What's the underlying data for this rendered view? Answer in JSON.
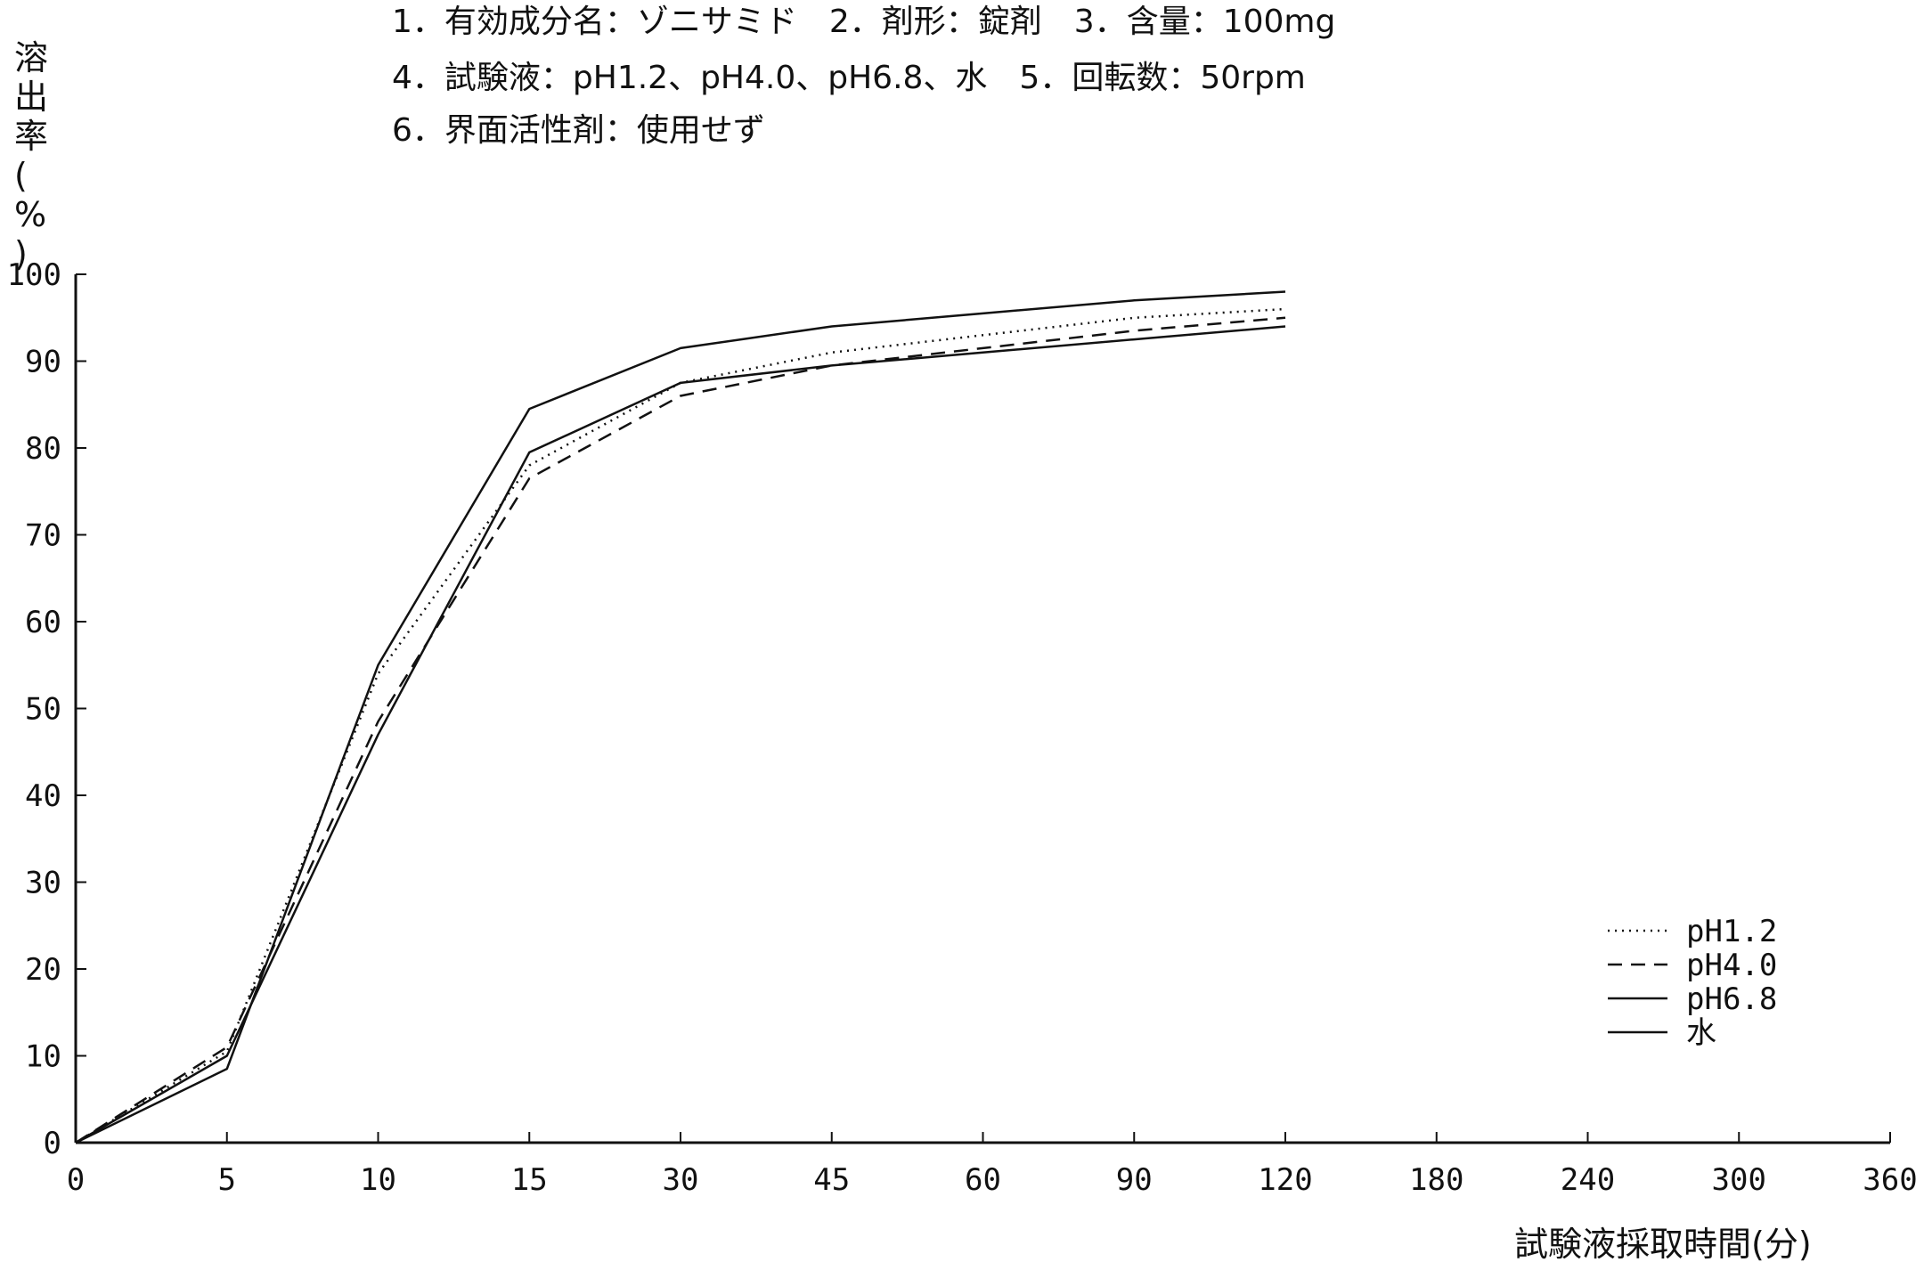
{
  "header": {
    "line1": "1．有効成分名：ゾニサミド　2．剤形：錠剤　3．含量：100mg",
    "line2": "4．試験液：pH1.2、pH4.0、pH6.8、水　5．回転数：50rpm",
    "line3": "6．界面活性剤：使用せず"
  },
  "chart_data": {
    "type": "line",
    "ylabel": "溶出率(%)",
    "xlabel": "試験液採取時間(分)",
    "x": [
      "0",
      "5",
      "10",
      "15",
      "30",
      "45",
      "60",
      "90",
      "120",
      "180",
      "240",
      "300",
      "360"
    ],
    "yticks": [
      "0",
      "10",
      "20",
      "30",
      "40",
      "50",
      "60",
      "70",
      "80",
      "90",
      "100"
    ],
    "ylim": [
      0,
      100
    ],
    "grid": false,
    "legend_position": "bottom-right",
    "series": [
      {
        "name": "pH1.2",
        "style": "dotted",
        "x": [
          "0",
          "5",
          "10",
          "15",
          "30",
          "45",
          "60",
          "90",
          "120"
        ],
        "values": [
          0,
          10.5,
          54,
          78,
          87.5,
          91,
          93,
          95,
          96
        ]
      },
      {
        "name": "pH4.0",
        "style": "dashed",
        "x": [
          "0",
          "5",
          "10",
          "15",
          "30",
          "45",
          "60",
          "90",
          "120"
        ],
        "values": [
          0,
          11,
          48.5,
          76.5,
          86,
          89.5,
          91.5,
          93.5,
          95
        ]
      },
      {
        "name": "pH6.8",
        "style": "solid",
        "x": [
          "0",
          "5",
          "10",
          "15",
          "30",
          "45",
          "60",
          "90",
          "120"
        ],
        "values": [
          0,
          8.5,
          55,
          84.5,
          91.5,
          94,
          95.5,
          97,
          98
        ]
      },
      {
        "name": "水",
        "style": "solid",
        "x": [
          "0",
          "5",
          "10",
          "15",
          "30",
          "45",
          "60",
          "90",
          "120"
        ],
        "values": [
          0,
          10,
          47,
          79.5,
          87.5,
          89.5,
          91,
          92.5,
          94
        ]
      }
    ],
    "colors": {
      "line": "#111111"
    }
  }
}
